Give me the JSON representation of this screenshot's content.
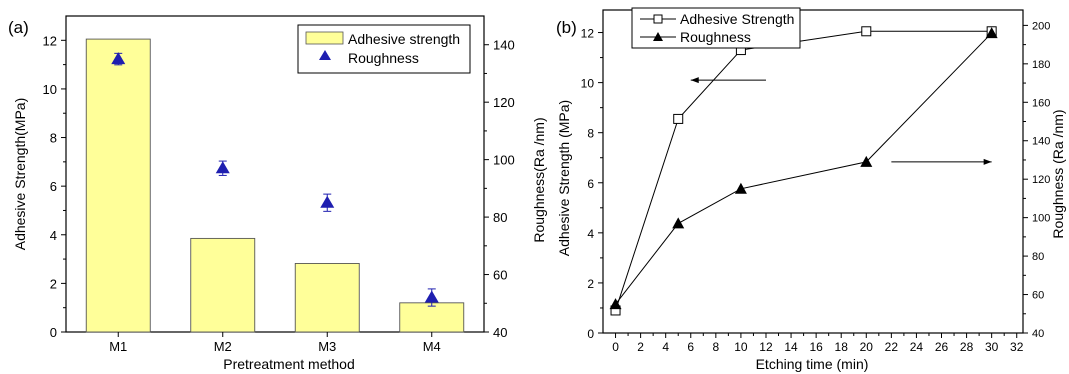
{
  "colors": {
    "bar_fill": "#ffff99",
    "bar_stroke": "#555555",
    "marker_blue": "#1f1fb0",
    "axis": "#000000"
  },
  "chart_data": [
    {
      "panel_label": "(a)",
      "type": "bar",
      "xlabel": "Pretreatment method",
      "ylabel": "Adhesive Strength(MPa)",
      "y2label": "Roughness(Ra /nm)",
      "categories": [
        "M1",
        "M2",
        "M3",
        "M4"
      ],
      "ylim": [
        0,
        13
      ],
      "y2lim": [
        40,
        150
      ],
      "y_ticks": [
        0,
        2,
        4,
        6,
        8,
        10,
        12
      ],
      "y2_ticks": [
        40,
        60,
        80,
        100,
        120,
        140
      ],
      "grid": false,
      "legend_position": "top-right",
      "series": [
        {
          "name": "Adhesive strength",
          "kind": "bar",
          "axis": "left",
          "values": [
            12.05,
            3.85,
            2.82,
            1.2
          ]
        },
        {
          "name": "Roughness",
          "kind": "marker",
          "marker": "triangle",
          "axis": "right",
          "values": [
            135,
            97,
            85,
            52
          ],
          "errors": [
            2,
            2.5,
            3,
            3
          ]
        }
      ]
    },
    {
      "panel_label": "(b)",
      "type": "line",
      "xlabel": "Etching time (min)",
      "ylabel": "Adhesive Strength (MPa)",
      "y2label": "Roughness (Ra /nm)",
      "xlim": [
        -1,
        32.5
      ],
      "ylim": [
        0,
        12.9
      ],
      "y2lim": [
        40,
        208
      ],
      "x_ticks": [
        0,
        2,
        4,
        6,
        8,
        10,
        12,
        14,
        16,
        18,
        20,
        22,
        24,
        26,
        28,
        30,
        32
      ],
      "y_ticks": [
        0,
        2,
        4,
        6,
        8,
        10,
        12
      ],
      "y2_ticks": [
        40,
        60,
        80,
        100,
        120,
        140,
        160,
        180,
        200
      ],
      "grid": false,
      "legend_position": "top-left",
      "series": [
        {
          "name": "Adhesive Strength",
          "marker": "open-square",
          "axis": "left",
          "x": [
            0,
            5,
            10,
            20,
            30
          ],
          "values": [
            0.9,
            8.55,
            11.3,
            12.05,
            12.05
          ]
        },
        {
          "name": "Roughness",
          "marker": "filled-triangle",
          "axis": "right",
          "x": [
            0,
            5,
            10,
            20,
            30
          ],
          "values": [
            55,
            97,
            115,
            129,
            196
          ]
        }
      ],
      "arrows": [
        {
          "direction": "left",
          "x_range": [
            6,
            12
          ],
          "y": 10.1,
          "axis": "left"
        },
        {
          "direction": "right",
          "x_range": [
            22,
            30
          ],
          "y": 129,
          "axis": "right"
        }
      ]
    }
  ]
}
